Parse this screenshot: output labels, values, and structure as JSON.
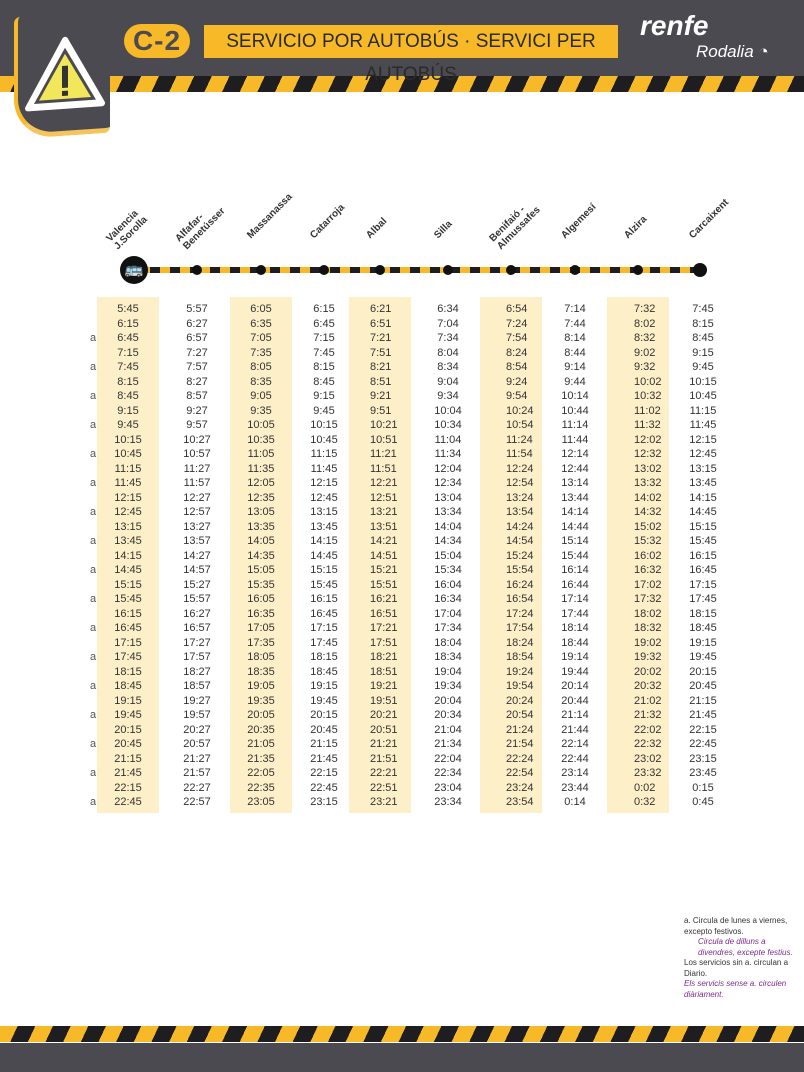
{
  "header": {
    "line": "C-2",
    "title": "SERVICIO POR AUTOBÚS · SERVICI PER AUTOBÚS",
    "brand": "renfe",
    "sub_brand": "Rodalia",
    "icon": "warning-triangle-icon"
  },
  "colors": {
    "dark": "#4b4a50",
    "yellow": "#f7b928",
    "shade": "#fdf0c8"
  },
  "stations": [
    "Valencia\nJ.Sorolla",
    "Alfafar-\nBenetússer",
    "Massanassa",
    "Catarroja",
    "Albal",
    "Silla",
    "Benifaió -\nAlmussafes",
    "Algemesí",
    "Alzira",
    "Carcaixent"
  ],
  "rows": [
    {
      "mark": "",
      "times": [
        "5:45",
        "5:57",
        "6:05",
        "6:15",
        "6:21",
        "6:34",
        "6:54",
        "7:14",
        "7:32",
        "7:45"
      ]
    },
    {
      "mark": "",
      "times": [
        "6:15",
        "6:27",
        "6:35",
        "6:45",
        "6:51",
        "7:04",
        "7:24",
        "7:44",
        "8:02",
        "8:15"
      ]
    },
    {
      "mark": "a",
      "times": [
        "6:45",
        "6:57",
        "7:05",
        "7:15",
        "7:21",
        "7:34",
        "7:54",
        "8:14",
        "8:32",
        "8:45"
      ]
    },
    {
      "mark": "",
      "times": [
        "7:15",
        "7:27",
        "7:35",
        "7:45",
        "7:51",
        "8:04",
        "8:24",
        "8:44",
        "9:02",
        "9:15"
      ]
    },
    {
      "mark": "a",
      "times": [
        "7:45",
        "7:57",
        "8:05",
        "8:15",
        "8:21",
        "8:34",
        "8:54",
        "9:14",
        "9:32",
        "9:45"
      ]
    },
    {
      "mark": "",
      "times": [
        "8:15",
        "8:27",
        "8:35",
        "8:45",
        "8:51",
        "9:04",
        "9:24",
        "9:44",
        "10:02",
        "10:15"
      ]
    },
    {
      "mark": "a",
      "times": [
        "8:45",
        "8:57",
        "9:05",
        "9:15",
        "9:21",
        "9:34",
        "9:54",
        "10:14",
        "10:32",
        "10:45"
      ]
    },
    {
      "mark": "",
      "times": [
        "9:15",
        "9:27",
        "9:35",
        "9:45",
        "9:51",
        "10:04",
        "10:24",
        "10:44",
        "11:02",
        "11:15"
      ]
    },
    {
      "mark": "a",
      "times": [
        "9:45",
        "9:57",
        "10:05",
        "10:15",
        "10:21",
        "10:34",
        "10:54",
        "11:14",
        "11:32",
        "11:45"
      ]
    },
    {
      "mark": "",
      "times": [
        "10:15",
        "10:27",
        "10:35",
        "10:45",
        "10:51",
        "11:04",
        "11:24",
        "11:44",
        "12:02",
        "12:15"
      ]
    },
    {
      "mark": "a",
      "times": [
        "10:45",
        "10:57",
        "11:05",
        "11:15",
        "11:21",
        "11:34",
        "11:54",
        "12:14",
        "12:32",
        "12:45"
      ]
    },
    {
      "mark": "",
      "times": [
        "11:15",
        "11:27",
        "11:35",
        "11:45",
        "11:51",
        "12:04",
        "12:24",
        "12:44",
        "13:02",
        "13:15"
      ]
    },
    {
      "mark": "a",
      "times": [
        "11:45",
        "11:57",
        "12:05",
        "12:15",
        "12:21",
        "12:34",
        "12:54",
        "13:14",
        "13:32",
        "13:45"
      ]
    },
    {
      "mark": "",
      "times": [
        "12:15",
        "12:27",
        "12:35",
        "12:45",
        "12:51",
        "13:04",
        "13:24",
        "13:44",
        "14:02",
        "14:15"
      ]
    },
    {
      "mark": "a",
      "times": [
        "12:45",
        "12:57",
        "13:05",
        "13:15",
        "13:21",
        "13:34",
        "13:54",
        "14:14",
        "14:32",
        "14:45"
      ]
    },
    {
      "mark": "",
      "times": [
        "13:15",
        "13:27",
        "13:35",
        "13:45",
        "13:51",
        "14:04",
        "14:24",
        "14:44",
        "15:02",
        "15:15"
      ]
    },
    {
      "mark": "a",
      "times": [
        "13:45",
        "13:57",
        "14:05",
        "14:15",
        "14:21",
        "14:34",
        "14:54",
        "15:14",
        "15:32",
        "15:45"
      ]
    },
    {
      "mark": "",
      "times": [
        "14:15",
        "14:27",
        "14:35",
        "14:45",
        "14:51",
        "15:04",
        "15:24",
        "15:44",
        "16:02",
        "16:15"
      ]
    },
    {
      "mark": "a",
      "times": [
        "14:45",
        "14:57",
        "15:05",
        "15:15",
        "15:21",
        "15:34",
        "15:54",
        "16:14",
        "16:32",
        "16:45"
      ]
    },
    {
      "mark": "",
      "times": [
        "15:15",
        "15:27",
        "15:35",
        "15:45",
        "15:51",
        "16:04",
        "16:24",
        "16:44",
        "17:02",
        "17:15"
      ]
    },
    {
      "mark": "a",
      "times": [
        "15:45",
        "15:57",
        "16:05",
        "16:15",
        "16:21",
        "16:34",
        "16:54",
        "17:14",
        "17:32",
        "17:45"
      ]
    },
    {
      "mark": "",
      "times": [
        "16:15",
        "16:27",
        "16:35",
        "16:45",
        "16:51",
        "17:04",
        "17:24",
        "17:44",
        "18:02",
        "18:15"
      ]
    },
    {
      "mark": "a",
      "times": [
        "16:45",
        "16:57",
        "17:05",
        "17:15",
        "17:21",
        "17:34",
        "17:54",
        "18:14",
        "18:32",
        "18:45"
      ]
    },
    {
      "mark": "",
      "times": [
        "17:15",
        "17:27",
        "17:35",
        "17:45",
        "17:51",
        "18:04",
        "18:24",
        "18:44",
        "19:02",
        "19:15"
      ]
    },
    {
      "mark": "a",
      "times": [
        "17:45",
        "17:57",
        "18:05",
        "18:15",
        "18:21",
        "18:34",
        "18:54",
        "19:14",
        "19:32",
        "19:45"
      ]
    },
    {
      "mark": "",
      "times": [
        "18:15",
        "18:27",
        "18:35",
        "18:45",
        "18:51",
        "19:04",
        "19:24",
        "19:44",
        "20:02",
        "20:15"
      ]
    },
    {
      "mark": "a",
      "times": [
        "18:45",
        "18:57",
        "19:05",
        "19:15",
        "19:21",
        "19:34",
        "19:54",
        "20:14",
        "20:32",
        "20:45"
      ]
    },
    {
      "mark": "",
      "times": [
        "19:15",
        "19:27",
        "19:35",
        "19:45",
        "19:51",
        "20:04",
        "20:24",
        "20:44",
        "21:02",
        "21:15"
      ]
    },
    {
      "mark": "a",
      "times": [
        "19:45",
        "19:57",
        "20:05",
        "20:15",
        "20:21",
        "20:34",
        "20:54",
        "21:14",
        "21:32",
        "21:45"
      ]
    },
    {
      "mark": "",
      "times": [
        "20:15",
        "20:27",
        "20:35",
        "20:45",
        "20:51",
        "21:04",
        "21:24",
        "21:44",
        "22:02",
        "22:15"
      ]
    },
    {
      "mark": "a",
      "times": [
        "20:45",
        "20:57",
        "21:05",
        "21:15",
        "21:21",
        "21:34",
        "21:54",
        "22:14",
        "22:32",
        "22:45"
      ]
    },
    {
      "mark": "",
      "times": [
        "21:15",
        "21:27",
        "21:35",
        "21:45",
        "21:51",
        "22:04",
        "22:24",
        "22:44",
        "23:02",
        "23:15"
      ]
    },
    {
      "mark": "a",
      "times": [
        "21:45",
        "21:57",
        "22:05",
        "22:15",
        "22:21",
        "22:34",
        "22:54",
        "23:14",
        "23:32",
        "23:45"
      ]
    },
    {
      "mark": "",
      "times": [
        "22:15",
        "22:27",
        "22:35",
        "22:45",
        "22:51",
        "23:04",
        "23:24",
        "23:44",
        "0:02",
        "0:15"
      ]
    },
    {
      "mark": "a",
      "times": [
        "22:45",
        "22:57",
        "23:05",
        "23:15",
        "23:21",
        "23:34",
        "23:54",
        "0:14",
        "0:32",
        "0:45"
      ]
    }
  ],
  "notes": {
    "a_es": "a.      Circula de lunes a viernes, excepto festivos.",
    "a_ca": "Circula de dilluns a divendres, excepte festius.",
    "other_es": "Los servicios sin a. circulan a Diario.",
    "other_ca": "Els servicis sense a. circulen diàriament."
  }
}
